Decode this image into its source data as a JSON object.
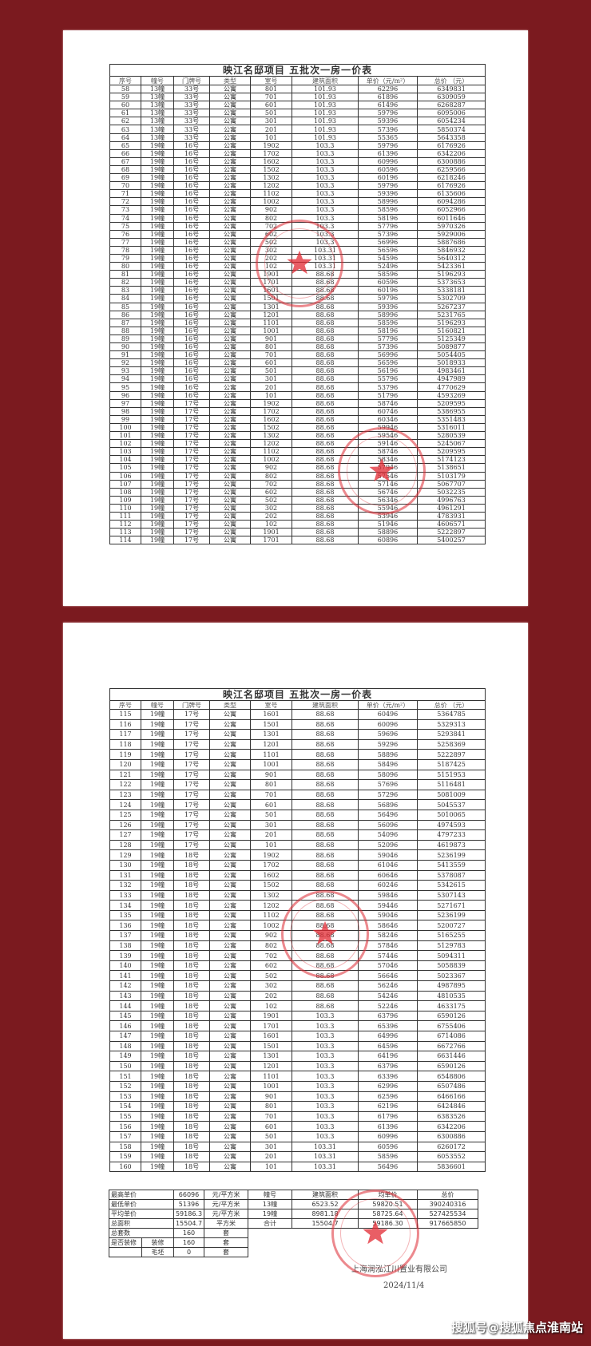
{
  "title": "映江名邸项目   五批次一房一价表",
  "headers": [
    "序号",
    "幢号",
    "门牌号",
    "类型",
    "室号",
    "建筑面积",
    "单价（元/m²）",
    "总价  （元）"
  ],
  "page1": {
    "rows": [
      [
        "58",
        "13幢",
        "33号",
        "公寓",
        "801",
        "101.93",
        "62296",
        "6349831"
      ],
      [
        "59",
        "13幢",
        "33号",
        "公寓",
        "701",
        "101.93",
        "61896",
        "6309059"
      ],
      [
        "60",
        "13幢",
        "33号",
        "公寓",
        "601",
        "101.93",
        "61496",
        "6268287"
      ],
      [
        "61",
        "13幢",
        "33号",
        "公寓",
        "501",
        "101.93",
        "59796",
        "6095006"
      ],
      [
        "62",
        "13幢",
        "33号",
        "公寓",
        "301",
        "101.93",
        "59396",
        "6054234"
      ],
      [
        "63",
        "13幢",
        "33号",
        "公寓",
        "201",
        "101.93",
        "57396",
        "5850374"
      ],
      [
        "64",
        "13幢",
        "33号",
        "公寓",
        "101",
        "101.93",
        "55365",
        "5643358"
      ],
      [
        "65",
        "19幢",
        "16号",
        "公寓",
        "1902",
        "103.3",
        "59796",
        "6176926"
      ],
      [
        "66",
        "19幢",
        "16号",
        "公寓",
        "1702",
        "103.3",
        "61396",
        "6342206"
      ],
      [
        "67",
        "19幢",
        "16号",
        "公寓",
        "1602",
        "103.3",
        "60996",
        "6300886"
      ],
      [
        "68",
        "19幢",
        "16号",
        "公寓",
        "1502",
        "103.3",
        "60596",
        "6259566"
      ],
      [
        "69",
        "19幢",
        "16号",
        "公寓",
        "1302",
        "103.3",
        "60196",
        "6218246"
      ],
      [
        "70",
        "19幢",
        "16号",
        "公寓",
        "1202",
        "103.3",
        "59796",
        "6176926"
      ],
      [
        "71",
        "19幢",
        "16号",
        "公寓",
        "1102",
        "103.3",
        "59396",
        "6135606"
      ],
      [
        "72",
        "19幢",
        "16号",
        "公寓",
        "1002",
        "103.3",
        "58996",
        "6094286"
      ],
      [
        "73",
        "19幢",
        "16号",
        "公寓",
        "902",
        "103.3",
        "58596",
        "6052966"
      ],
      [
        "74",
        "19幢",
        "16号",
        "公寓",
        "802",
        "103.3",
        "58196",
        "6011646"
      ],
      [
        "75",
        "19幢",
        "16号",
        "公寓",
        "702",
        "103.3",
        "57796",
        "5970326"
      ],
      [
        "76",
        "19幢",
        "16号",
        "公寓",
        "602",
        "103.3",
        "57396",
        "5929006"
      ],
      [
        "77",
        "19幢",
        "16号",
        "公寓",
        "502",
        "103.3",
        "56996",
        "5887686"
      ],
      [
        "78",
        "19幢",
        "16号",
        "公寓",
        "302",
        "103.31",
        "56596",
        "5846932"
      ],
      [
        "79",
        "19幢",
        "16号",
        "公寓",
        "202",
        "103.31",
        "54596",
        "5640312"
      ],
      [
        "80",
        "19幢",
        "16号",
        "公寓",
        "102",
        "103.31",
        "52496",
        "5423361"
      ],
      [
        "81",
        "19幢",
        "16号",
        "公寓",
        "1901",
        "88.68",
        "58596",
        "5196293"
      ],
      [
        "82",
        "19幢",
        "16号",
        "公寓",
        "1701",
        "88.68",
        "60596",
        "5373653"
      ],
      [
        "83",
        "19幢",
        "16号",
        "公寓",
        "1601",
        "88.68",
        "60196",
        "5338181"
      ],
      [
        "84",
        "19幢",
        "16号",
        "公寓",
        "1501",
        "88.68",
        "59796",
        "5302709"
      ],
      [
        "85",
        "19幢",
        "16号",
        "公寓",
        "1301",
        "88.68",
        "59396",
        "5267237"
      ],
      [
        "86",
        "19幢",
        "16号",
        "公寓",
        "1201",
        "88.68",
        "58996",
        "5231765"
      ],
      [
        "87",
        "19幢",
        "16号",
        "公寓",
        "1101",
        "88.68",
        "58596",
        "5196293"
      ],
      [
        "88",
        "19幢",
        "16号",
        "公寓",
        "1001",
        "88.68",
        "58196",
        "5160821"
      ],
      [
        "89",
        "19幢",
        "16号",
        "公寓",
        "901",
        "88.68",
        "57796",
        "5125349"
      ],
      [
        "90",
        "19幢",
        "16号",
        "公寓",
        "801",
        "88.68",
        "57396",
        "5089877"
      ],
      [
        "91",
        "19幢",
        "16号",
        "公寓",
        "701",
        "88.68",
        "56996",
        "5054405"
      ],
      [
        "92",
        "19幢",
        "16号",
        "公寓",
        "601",
        "88.68",
        "56596",
        "5018933"
      ],
      [
        "93",
        "19幢",
        "16号",
        "公寓",
        "501",
        "88.68",
        "56196",
        "4983461"
      ],
      [
        "94",
        "19幢",
        "16号",
        "公寓",
        "301",
        "88.68",
        "55796",
        "4947989"
      ],
      [
        "95",
        "19幢",
        "16号",
        "公寓",
        "201",
        "88.68",
        "53796",
        "4770629"
      ],
      [
        "96",
        "19幢",
        "16号",
        "公寓",
        "101",
        "88.68",
        "51796",
        "4593269"
      ],
      [
        "97",
        "19幢",
        "17号",
        "公寓",
        "1902",
        "88.68",
        "58746",
        "5209595"
      ],
      [
        "98",
        "19幢",
        "17号",
        "公寓",
        "1702",
        "88.68",
        "60746",
        "5386955"
      ],
      [
        "99",
        "19幢",
        "17号",
        "公寓",
        "1602",
        "88.68",
        "60346",
        "5351483"
      ],
      [
        "100",
        "19幢",
        "17号",
        "公寓",
        "1502",
        "88.68",
        "59946",
        "5316011"
      ],
      [
        "101",
        "19幢",
        "17号",
        "公寓",
        "1302",
        "88.68",
        "59546",
        "5280539"
      ],
      [
        "102",
        "19幢",
        "17号",
        "公寓",
        "1202",
        "88.68",
        "59146",
        "5245067"
      ],
      [
        "103",
        "19幢",
        "17号",
        "公寓",
        "1102",
        "88.68",
        "58746",
        "5209595"
      ],
      [
        "104",
        "19幢",
        "17号",
        "公寓",
        "1002",
        "88.68",
        "58346",
        "5174123"
      ],
      [
        "105",
        "19幢",
        "17号",
        "公寓",
        "902",
        "88.68",
        "57946",
        "5138651"
      ],
      [
        "106",
        "19幢",
        "17号",
        "公寓",
        "802",
        "88.68",
        "57546",
        "5103179"
      ],
      [
        "107",
        "19幢",
        "17号",
        "公寓",
        "702",
        "88.68",
        "57146",
        "5067707"
      ],
      [
        "108",
        "19幢",
        "17号",
        "公寓",
        "602",
        "88.68",
        "56746",
        "5032235"
      ],
      [
        "109",
        "19幢",
        "17号",
        "公寓",
        "502",
        "88.68",
        "56346",
        "4996763"
      ],
      [
        "110",
        "19幢",
        "17号",
        "公寓",
        "302",
        "88.68",
        "55946",
        "4961291"
      ],
      [
        "111",
        "19幢",
        "17号",
        "公寓",
        "202",
        "88.68",
        "53946",
        "4783931"
      ],
      [
        "112",
        "19幢",
        "17号",
        "公寓",
        "102",
        "88.68",
        "51946",
        "4606571"
      ],
      [
        "113",
        "19幢",
        "17号",
        "公寓",
        "1901",
        "88.68",
        "58896",
        "5222897"
      ],
      [
        "114",
        "19幢",
        "17号",
        "公寓",
        "1701",
        "88.68",
        "60896",
        "5400257"
      ]
    ]
  },
  "page2": {
    "rows": [
      [
        "115",
        "19幢",
        "17号",
        "公寓",
        "1601",
        "88.68",
        "60496",
        "5364785"
      ],
      [
        "116",
        "19幢",
        "17号",
        "公寓",
        "1501",
        "88.68",
        "60096",
        "5329313"
      ],
      [
        "117",
        "19幢",
        "17号",
        "公寓",
        "1301",
        "88.68",
        "59696",
        "5293841"
      ],
      [
        "118",
        "19幢",
        "17号",
        "公寓",
        "1201",
        "88.68",
        "59296",
        "5258369"
      ],
      [
        "119",
        "19幢",
        "17号",
        "公寓",
        "1101",
        "88.68",
        "58896",
        "5222897"
      ],
      [
        "120",
        "19幢",
        "17号",
        "公寓",
        "1001",
        "88.68",
        "58496",
        "5187425"
      ],
      [
        "121",
        "19幢",
        "17号",
        "公寓",
        "901",
        "88.68",
        "58096",
        "5151953"
      ],
      [
        "122",
        "19幢",
        "17号",
        "公寓",
        "801",
        "88.68",
        "57696",
        "5116481"
      ],
      [
        "123",
        "19幢",
        "17号",
        "公寓",
        "701",
        "88.68",
        "57296",
        "5081009"
      ],
      [
        "124",
        "19幢",
        "17号",
        "公寓",
        "601",
        "88.68",
        "56896",
        "5045537"
      ],
      [
        "125",
        "19幢",
        "17号",
        "公寓",
        "501",
        "88.68",
        "56496",
        "5010065"
      ],
      [
        "126",
        "19幢",
        "17号",
        "公寓",
        "301",
        "88.68",
        "56096",
        "4974593"
      ],
      [
        "127",
        "19幢",
        "17号",
        "公寓",
        "201",
        "88.68",
        "54096",
        "4797233"
      ],
      [
        "128",
        "19幢",
        "17号",
        "公寓",
        "101",
        "88.68",
        "52096",
        "4619873"
      ],
      [
        "129",
        "19幢",
        "18号",
        "公寓",
        "1902",
        "88.68",
        "59046",
        "5236199"
      ],
      [
        "130",
        "19幢",
        "18号",
        "公寓",
        "1702",
        "88.68",
        "61046",
        "5413559"
      ],
      [
        "131",
        "19幢",
        "18号",
        "公寓",
        "1602",
        "88.68",
        "60646",
        "5378087"
      ],
      [
        "132",
        "19幢",
        "18号",
        "公寓",
        "1502",
        "88.68",
        "60246",
        "5342615"
      ],
      [
        "133",
        "19幢",
        "18号",
        "公寓",
        "1302",
        "88.68",
        "59846",
        "5307143"
      ],
      [
        "134",
        "19幢",
        "18号",
        "公寓",
        "1202",
        "88.68",
        "59446",
        "5271671"
      ],
      [
        "135",
        "19幢",
        "18号",
        "公寓",
        "1102",
        "88.68",
        "59046",
        "5236199"
      ],
      [
        "136",
        "19幢",
        "18号",
        "公寓",
        "1002",
        "88.68",
        "58646",
        "5200727"
      ],
      [
        "137",
        "19幢",
        "18号",
        "公寓",
        "902",
        "88.68",
        "58246",
        "5165255"
      ],
      [
        "138",
        "19幢",
        "18号",
        "公寓",
        "802",
        "88.68",
        "57846",
        "5129783"
      ],
      [
        "139",
        "19幢",
        "18号",
        "公寓",
        "702",
        "88.68",
        "57446",
        "5094311"
      ],
      [
        "140",
        "19幢",
        "18号",
        "公寓",
        "602",
        "88.68",
        "57046",
        "5058839"
      ],
      [
        "141",
        "19幢",
        "18号",
        "公寓",
        "502",
        "88.68",
        "56646",
        "5023367"
      ],
      [
        "142",
        "19幢",
        "18号",
        "公寓",
        "302",
        "88.68",
        "56246",
        "4987895"
      ],
      [
        "143",
        "19幢",
        "18号",
        "公寓",
        "202",
        "88.68",
        "54246",
        "4810535"
      ],
      [
        "144",
        "19幢",
        "18号",
        "公寓",
        "102",
        "88.68",
        "52246",
        "4633175"
      ],
      [
        "145",
        "19幢",
        "18号",
        "公寓",
        "1901",
        "103.3",
        "63796",
        "6590126"
      ],
      [
        "146",
        "19幢",
        "18号",
        "公寓",
        "1701",
        "103.3",
        "65396",
        "6755406"
      ],
      [
        "147",
        "19幢",
        "18号",
        "公寓",
        "1601",
        "103.3",
        "64996",
        "6714086"
      ],
      [
        "148",
        "19幢",
        "18号",
        "公寓",
        "1501",
        "103.3",
        "64596",
        "6672766"
      ],
      [
        "149",
        "19幢",
        "18号",
        "公寓",
        "1301",
        "103.3",
        "64196",
        "6631446"
      ],
      [
        "150",
        "19幢",
        "18号",
        "公寓",
        "1201",
        "103.3",
        "63796",
        "6590126"
      ],
      [
        "151",
        "19幢",
        "18号",
        "公寓",
        "1101",
        "103.3",
        "63396",
        "6548806"
      ],
      [
        "152",
        "19幢",
        "18号",
        "公寓",
        "1001",
        "103.3",
        "62996",
        "6507486"
      ],
      [
        "153",
        "19幢",
        "18号",
        "公寓",
        "901",
        "103.3",
        "62596",
        "6466166"
      ],
      [
        "154",
        "19幢",
        "18号",
        "公寓",
        "801",
        "103.3",
        "62196",
        "6424846"
      ],
      [
        "155",
        "19幢",
        "18号",
        "公寓",
        "701",
        "103.3",
        "61796",
        "6383526"
      ],
      [
        "156",
        "19幢",
        "18号",
        "公寓",
        "601",
        "103.3",
        "61396",
        "6342206"
      ],
      [
        "157",
        "19幢",
        "18号",
        "公寓",
        "501",
        "103.3",
        "60996",
        "6300886"
      ],
      [
        "158",
        "19幢",
        "18号",
        "公寓",
        "301",
        "103.31",
        "60596",
        "6260172"
      ],
      [
        "159",
        "19幢",
        "18号",
        "公寓",
        "201",
        "103.31",
        "58596",
        "6053552"
      ],
      [
        "160",
        "19幢",
        "18号",
        "公寓",
        "101",
        "103.31",
        "56496",
        "5836601"
      ]
    ]
  },
  "summary": {
    "left": [
      {
        "label": "最高单价",
        "value": "66096",
        "unit": "元/平方米"
      },
      {
        "label": "最低单价",
        "value": "51396",
        "unit": "元/平方米"
      },
      {
        "label": "平均单价",
        "value": "59186.3",
        "unit": "元/平方米"
      },
      {
        "label": "总面积",
        "value": "15504.7",
        "unit": "平方米"
      },
      {
        "label": "总套数",
        "value": "160",
        "unit": "套"
      },
      {
        "label": "是否装修",
        "sub": "装修",
        "value": "160",
        "unit": "套"
      },
      {
        "label": "",
        "sub": "毛坯",
        "value": "0",
        "unit": "套"
      }
    ],
    "right": [
      [
        "幢号",
        "建筑面积",
        "均单价",
        "总价"
      ],
      [
        "13幢",
        "6523.52",
        "59820.51",
        "390240316"
      ],
      [
        "19幢",
        "8981.18",
        "58725.64",
        "527425534"
      ],
      [
        "合计",
        "15504.7",
        "59186.30",
        "917665850"
      ]
    ]
  },
  "company": "上海润泓江川置业有限公司",
  "date": "2024/11/4",
  "watermark": "搜狐号@搜狐焦点淮南站",
  "colors": {
    "background": "#7b1a1f",
    "stamp": "#dc2832",
    "paper": "#ffffff"
  }
}
